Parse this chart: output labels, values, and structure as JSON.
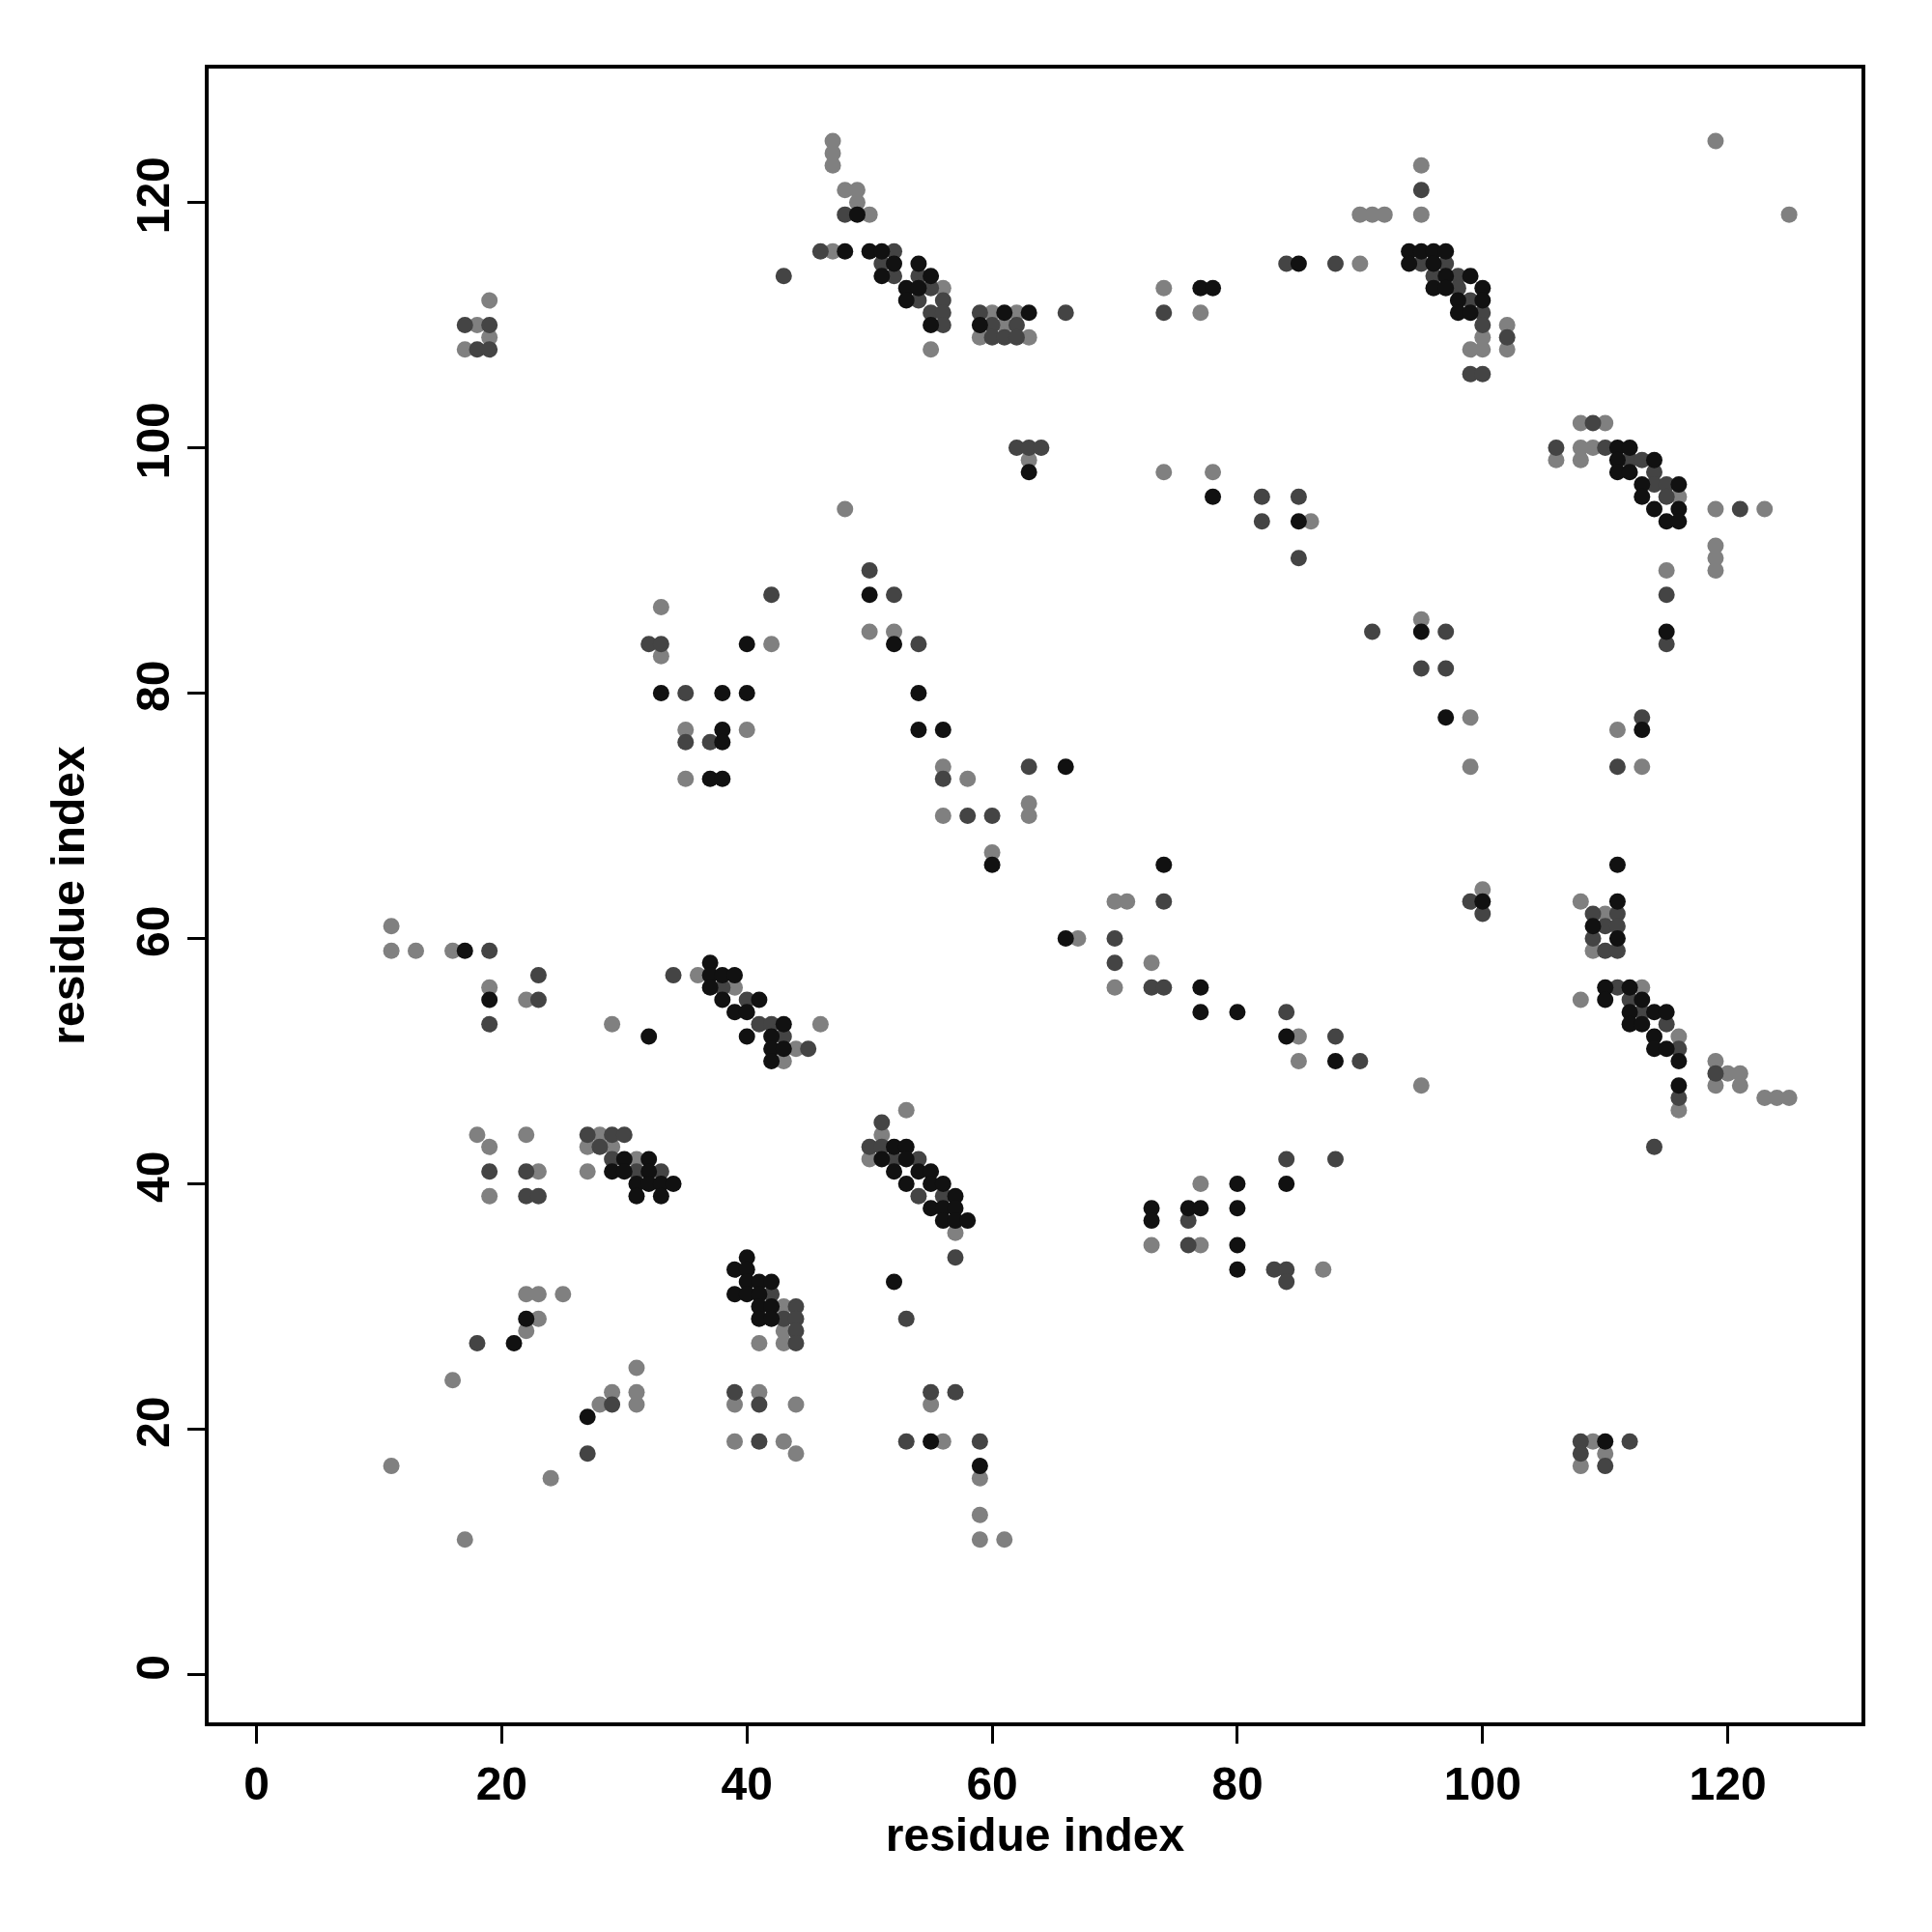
{
  "chart_data": {
    "type": "scatter",
    "xlabel": "residue index",
    "ylabel": "residue index",
    "xlim": [
      -3.9,
      130.9
    ],
    "ylim": [
      -3.9,
      130.9
    ],
    "xticks": [
      0,
      20,
      40,
      60,
      80,
      100,
      120
    ],
    "yticks": [
      0,
      20,
      40,
      60,
      80,
      100,
      120
    ],
    "grid": false,
    "marker": "circle",
    "series": [
      {
        "color": "#808080",
        "x": [
          18,
          19,
          17,
          19,
          47,
          47,
          47,
          47,
          48,
          49,
          49,
          50,
          48,
          55,
          56,
          59,
          60,
          61,
          62,
          63,
          63,
          74,
          77,
          90,
          90,
          91,
          92,
          95,
          95,
          100,
          100,
          99,
          102,
          102,
          106,
          108,
          108,
          108,
          110,
          109,
          116,
          119,
          119,
          119,
          119,
          123,
          119,
          125,
          115,
          111,
          113,
          74,
          78,
          86,
          95,
          99,
          99,
          100,
          33,
          33,
          35,
          35,
          40,
          42,
          50,
          52,
          56,
          56,
          58,
          60,
          63,
          63,
          67,
          70,
          71,
          70,
          73,
          85,
          85,
          95,
          11,
          11,
          13,
          16,
          19,
          22,
          29,
          36,
          39,
          43,
          44,
          46,
          108,
          109,
          110,
          108,
          113,
          116,
          116,
          119,
          119,
          120,
          121,
          121,
          123,
          124,
          125,
          18,
          19,
          19,
          22,
          23,
          27,
          27,
          28,
          29,
          31,
          50,
          51,
          53,
          57,
          73,
          77,
          77,
          87,
          43,
          43,
          41,
          43,
          39,
          39,
          41,
          43,
          44,
          44,
          55,
          56,
          59,
          59,
          59,
          61,
          11,
          16,
          17,
          22,
          22,
          23,
          23,
          25,
          24,
          28,
          29,
          31,
          31,
          31,
          108,
          109,
          110
        ],
        "values": [
          110,
          112,
          108,
          109,
          116,
          125,
          124,
          123,
          121,
          121,
          120,
          119,
          95,
          108,
          113,
          109,
          111,
          110,
          111,
          109,
          99,
          113,
          111,
          115,
          119,
          119,
          119,
          123,
          119,
          109,
          108,
          108,
          110,
          108,
          99,
          102,
          100,
          99,
          102,
          100,
          96,
          95,
          92,
          91,
          90,
          95,
          125,
          119,
          90,
          77,
          74,
          98,
          98,
          94,
          86,
          78,
          74,
          64,
          87,
          83,
          77,
          73,
          77,
          84,
          85,
          85,
          74,
          70,
          73,
          67,
          71,
          70,
          60,
          63,
          63,
          56,
          58,
          52,
          50,
          48,
          61,
          59,
          59,
          59,
          56,
          55,
          53,
          57,
          56,
          50,
          51,
          53,
          63,
          59,
          62,
          55,
          56,
          52,
          46,
          50,
          48,
          49,
          49,
          48,
          47,
          47,
          47,
          44,
          43,
          39,
          44,
          41,
          43,
          41,
          44,
          43,
          42,
          42,
          44,
          46,
          36,
          35,
          40,
          35,
          33,
          28,
          27,
          27,
          30,
          22,
          19,
          23,
          19,
          22,
          18,
          22,
          19,
          16,
          13,
          11,
          11,
          17,
          24,
          11,
          28,
          31,
          31,
          29,
          31,
          16,
          22,
          23,
          25,
          23,
          22,
          17,
          19,
          18
        ]
      },
      {
        "color": "#444444",
        "x": [
          17,
          19,
          18,
          19,
          43,
          46,
          48,
          51,
          52,
          52,
          54,
          54,
          55,
          55,
          56,
          56,
          56,
          59,
          60,
          60,
          61,
          62,
          62,
          66,
          62,
          63,
          64,
          74,
          84,
          88,
          95,
          95,
          96,
          97,
          98,
          98,
          99,
          100,
          100,
          99,
          100,
          102,
          106,
          109,
          110,
          112,
          113,
          114,
          114,
          115,
          115,
          121,
          115,
          115,
          111,
          113,
          82,
          82,
          85,
          85,
          91,
          95,
          97,
          97,
          99,
          100,
          32,
          33,
          35,
          35,
          37,
          42,
          50,
          52,
          54,
          56,
          58,
          60,
          63,
          70,
          70,
          73,
          74,
          74,
          84,
          88,
          90,
          19,
          19,
          23,
          23,
          34,
          38,
          40,
          41,
          42,
          43,
          45,
          109,
          109,
          110,
          110,
          111,
          111,
          111,
          111,
          112,
          113,
          115,
          116,
          116,
          114,
          119,
          19,
          22,
          22,
          23,
          27,
          28,
          29,
          30,
          29,
          31,
          33,
          50,
          51,
          51,
          52,
          54,
          54,
          56,
          57,
          53,
          76,
          76,
          83,
          84,
          84,
          84,
          88,
          42,
          43,
          44,
          44,
          44,
          44,
          39,
          41,
          41,
          55,
          53,
          57,
          59,
          18,
          27,
          29,
          108,
          108,
          110,
          112
        ],
        "values": [
          110,
          110,
          108,
          108,
          114,
          116,
          119,
          115,
          116,
          114,
          114,
          112,
          113,
          111,
          112,
          111,
          110,
          111,
          110,
          109,
          109,
          110,
          109,
          111,
          100,
          100,
          100,
          111,
          115,
          115,
          121,
          115,
          114,
          115,
          114,
          113,
          112,
          111,
          110,
          106,
          106,
          109,
          100,
          102,
          100,
          99,
          99,
          98,
          97,
          97,
          96,
          95,
          88,
          84,
          74,
          78,
          96,
          94,
          96,
          91,
          85,
          82,
          85,
          82,
          63,
          62,
          84,
          84,
          80,
          76,
          76,
          88,
          90,
          88,
          84,
          73,
          70,
          70,
          74,
          60,
          58,
          56,
          56,
          63,
          54,
          52,
          50,
          59,
          53,
          55,
          57,
          57,
          56,
          55,
          53,
          53,
          52,
          51,
          62,
          60,
          61,
          59,
          62,
          61,
          59,
          56,
          55,
          54,
          53,
          51,
          47,
          43,
          49,
          41,
          41,
          39,
          39,
          44,
          43,
          44,
          44,
          42,
          41,
          41,
          43,
          45,
          43,
          42,
          42,
          39,
          39,
          34,
          29,
          37,
          35,
          33,
          33,
          32,
          42,
          42,
          31,
          29,
          30,
          29,
          28,
          27,
          23,
          22,
          19,
          23,
          19,
          23,
          19,
          27,
          18,
          22,
          19,
          18,
          17,
          19
        ]
      },
      {
        "color": "#111111",
        "x": [
          48,
          49,
          50,
          51,
          51,
          52,
          53,
          53,
          54,
          54,
          55,
          55,
          59,
          61,
          63,
          63,
          77,
          78,
          85,
          94,
          94,
          95,
          96,
          96,
          96,
          97,
          97,
          97,
          98,
          98,
          99,
          99,
          100,
          100,
          111,
          111,
          111,
          112,
          112,
          113,
          113,
          114,
          114,
          115,
          116,
          116,
          116,
          115,
          113,
          78,
          85,
          95,
          97,
          100,
          33,
          37,
          38,
          38,
          38,
          38,
          40,
          40,
          50,
          52,
          54,
          54,
          56,
          60,
          66,
          66,
          74,
          77,
          77,
          80,
          84,
          88,
          17,
          19,
          32,
          37,
          37,
          37,
          38,
          38,
          39,
          39,
          40,
          40,
          41,
          42,
          42,
          42,
          43,
          43,
          109,
          111,
          111,
          111,
          110,
          110,
          112,
          112,
          112,
          113,
          113,
          114,
          114,
          114,
          115,
          115,
          116,
          116,
          30,
          29,
          30,
          31,
          31,
          32,
          32,
          32,
          33,
          33,
          34,
          51,
          52,
          52,
          53,
          53,
          53,
          54,
          55,
          55,
          55,
          56,
          56,
          56,
          57,
          57,
          57,
          58,
          52,
          73,
          73,
          76,
          77,
          80,
          80,
          80,
          80,
          84,
          39,
          40,
          40,
          39,
          40,
          40,
          41,
          41,
          41,
          41,
          42,
          42,
          42,
          55,
          59,
          21,
          22,
          27,
          110
        ],
        "values": [
          116,
          119,
          116,
          116,
          114,
          115,
          113,
          112,
          115,
          113,
          114,
          110,
          110,
          111,
          111,
          98,
          113,
          113,
          115,
          116,
          115,
          116,
          116,
          115,
          113,
          116,
          114,
          113,
          112,
          111,
          114,
          111,
          113,
          112,
          100,
          99,
          98,
          100,
          98,
          97,
          96,
          99,
          95,
          94,
          97,
          95,
          94,
          85,
          77,
          96,
          94,
          85,
          78,
          63,
          80,
          73,
          80,
          77,
          76,
          73,
          84,
          80,
          88,
          84,
          80,
          77,
          77,
          66,
          74,
          60,
          66,
          56,
          54,
          54,
          52,
          50,
          59,
          55,
          52,
          58,
          57,
          56,
          57,
          55,
          57,
          54,
          54,
          52,
          55,
          52,
          51,
          50,
          53,
          51,
          61,
          66,
          63,
          60,
          56,
          55,
          56,
          54,
          53,
          55,
          53,
          54,
          52,
          51,
          54,
          51,
          50,
          48,
          42,
          41,
          41,
          40,
          39,
          42,
          41,
          40,
          40,
          39,
          40,
          42,
          43,
          41,
          43,
          42,
          40,
          41,
          41,
          40,
          38,
          40,
          38,
          37,
          39,
          38,
          37,
          37,
          32,
          38,
          37,
          38,
          38,
          40,
          38,
          35,
          33,
          40,
          33,
          34,
          33,
          31,
          32,
          31,
          32,
          31,
          30,
          29,
          32,
          30,
          29,
          19,
          17,
          27,
          29,
          21,
          19
        ]
      }
    ]
  }
}
